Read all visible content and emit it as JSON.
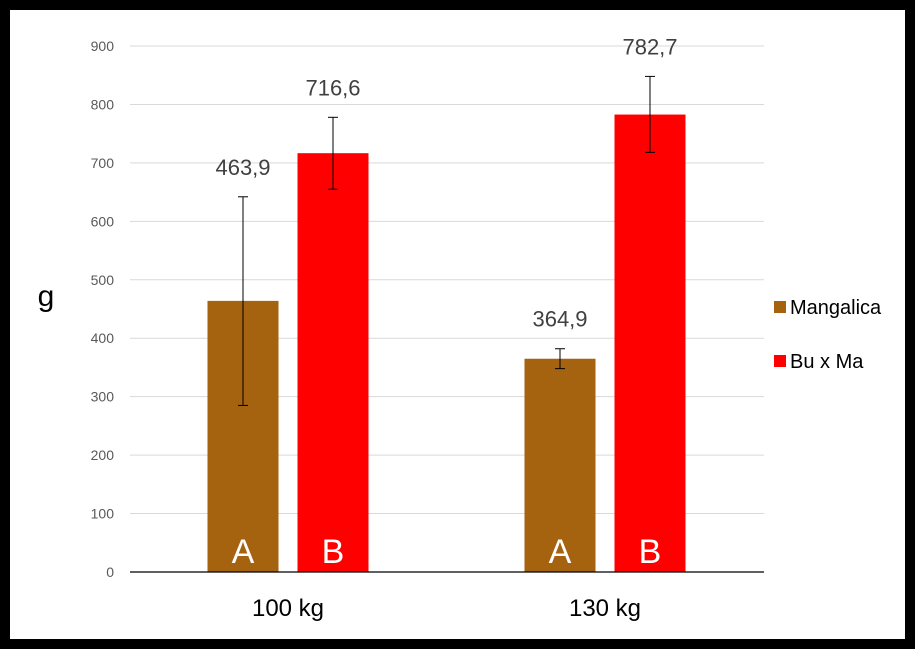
{
  "colors": {
    "frame": "#000000",
    "panel": "#ffffff",
    "grid": "#d9d9d9",
    "axis": "#000000",
    "error": "#000000"
  },
  "chart_data": {
    "type": "bar",
    "title": "",
    "xlabel": "",
    "ylabel": "g",
    "ylim": [
      0,
      900
    ],
    "yticks": [
      0,
      100,
      200,
      300,
      400,
      500,
      600,
      700,
      800,
      900
    ],
    "grid": true,
    "legend_position": "right",
    "categories": [
      "100 kg",
      "130 kg"
    ],
    "series": [
      {
        "name": "Mangalica",
        "color": "#a5620f",
        "values": [
          463.9,
          364.9
        ],
        "value_labels": [
          "463,9",
          "364,9"
        ],
        "error_low": [
          285,
          348
        ],
        "error_high": [
          642,
          382
        ],
        "letters": [
          "A",
          "A"
        ]
      },
      {
        "name": "Bu x Ma",
        "color": "#ff0000",
        "values": [
          716.6,
          782.7
        ],
        "value_labels": [
          "716,6",
          "782,7"
        ],
        "error_low": [
          655,
          718
        ],
        "error_high": [
          778,
          848
        ],
        "letters": [
          "B",
          "B"
        ]
      }
    ]
  }
}
